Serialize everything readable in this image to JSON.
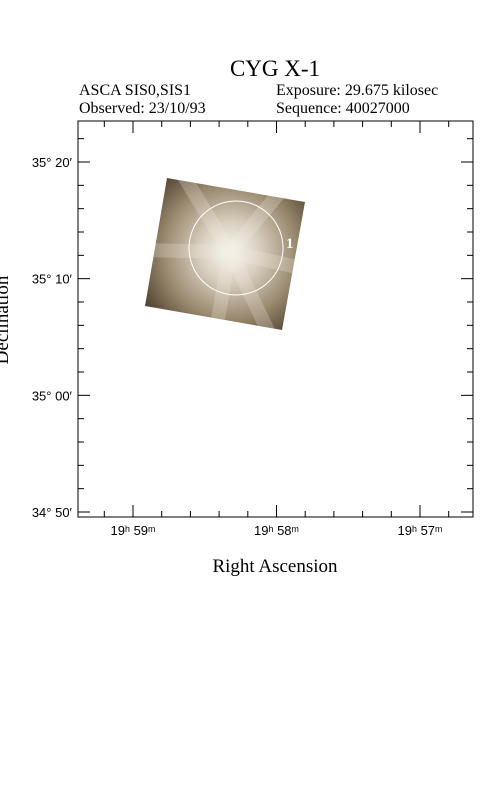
{
  "header": {
    "title": "CYG X-1",
    "instrument": "ASCA SIS0,SIS1",
    "exposure": "Exposure: 29.675 kilosec",
    "observed": "Observed: 23/10/93",
    "sequence": "Sequence: 40027000"
  },
  "axes": {
    "x_label": "Right Ascension",
    "y_label": "Declination",
    "x_ticks": [
      "19ʰ 59ᵐ",
      "19ʰ 58ᵐ",
      "19ʰ 57ᵐ"
    ],
    "y_ticks": [
      "35° 20′",
      "35° 10′",
      "35° 00′",
      "34° 50′"
    ]
  },
  "region": {
    "label": "1"
  }
}
